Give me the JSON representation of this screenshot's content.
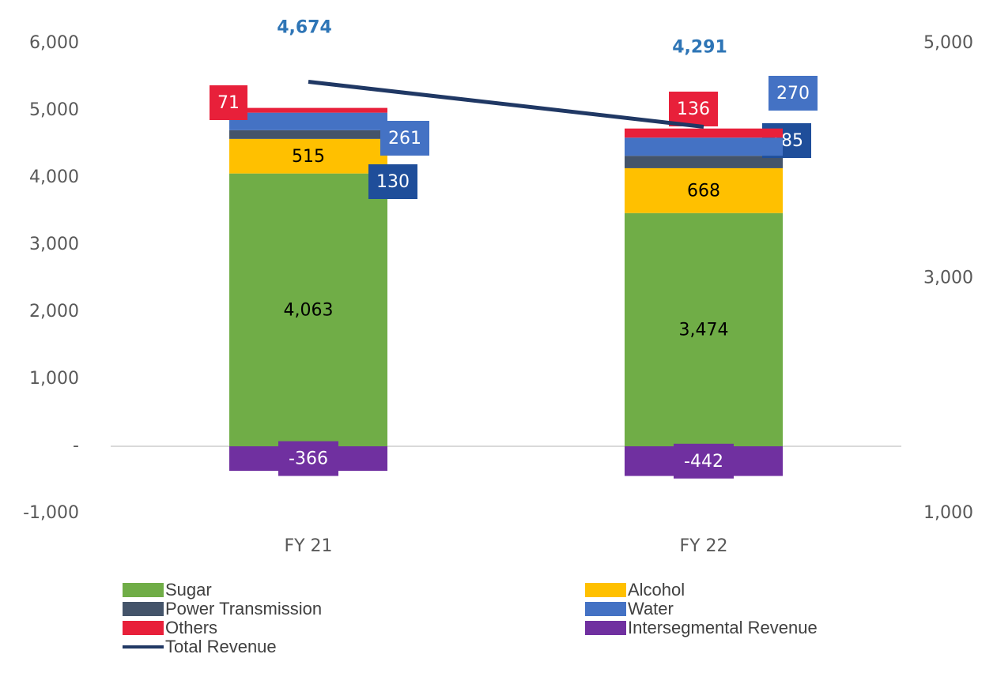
{
  "chart_data": {
    "type": "bar",
    "categories": [
      "FY 21",
      "FY 22"
    ],
    "series": [
      {
        "name": "Sugar",
        "color": "#70ad47",
        "values": [
          4063,
          3474
        ],
        "value_labels": [
          "4,063",
          "3,474"
        ]
      },
      {
        "name": "Alcohol",
        "color": "#ffc000",
        "values": [
          515,
          668
        ],
        "value_labels": [
          "515",
          "668"
        ]
      },
      {
        "name": "Power Transmission",
        "color": "#44546a",
        "values": [
          130,
          185
        ],
        "value_labels": [
          "130",
          "185"
        ]
      },
      {
        "name": "Water",
        "color": "#4472c4",
        "values": [
          261,
          270
        ],
        "value_labels": [
          "261",
          "270"
        ]
      },
      {
        "name": "Others",
        "color": "#e8203a",
        "values": [
          71,
          136
        ],
        "value_labels": [
          "71",
          "136"
        ]
      },
      {
        "name": "Intersegmental Revenue",
        "color": "#7030a0",
        "values": [
          -366,
          -442
        ],
        "value_labels": [
          "-366",
          "-442"
        ]
      },
      {
        "name": "Total Revenue",
        "color": "#203864",
        "type": "line",
        "axis": "y2",
        "values": [
          4674,
          4291
        ],
        "value_labels": [
          "4,674",
          "4,291"
        ]
      }
    ],
    "ylim": [
      -1000,
      6000
    ],
    "yticks": [
      {
        "value": -1000,
        "label": "-1,000"
      },
      {
        "value": 0,
        "label": "-"
      },
      {
        "value": 1000,
        "label": "1,000"
      },
      {
        "value": 2000,
        "label": "2,000"
      },
      {
        "value": 3000,
        "label": "3,000"
      },
      {
        "value": 4000,
        "label": "4,000"
      },
      {
        "value": 5000,
        "label": "5,000"
      },
      {
        "value": 6000,
        "label": "6,000"
      }
    ],
    "y2lim": [
      1000,
      5000
    ],
    "y2ticks": [
      {
        "value": 1000,
        "label": "1,000"
      },
      {
        "value": 3000,
        "label": "3,000"
      },
      {
        "value": 5000,
        "label": "5,000"
      }
    ],
    "grid": false,
    "legend": "bottom"
  }
}
